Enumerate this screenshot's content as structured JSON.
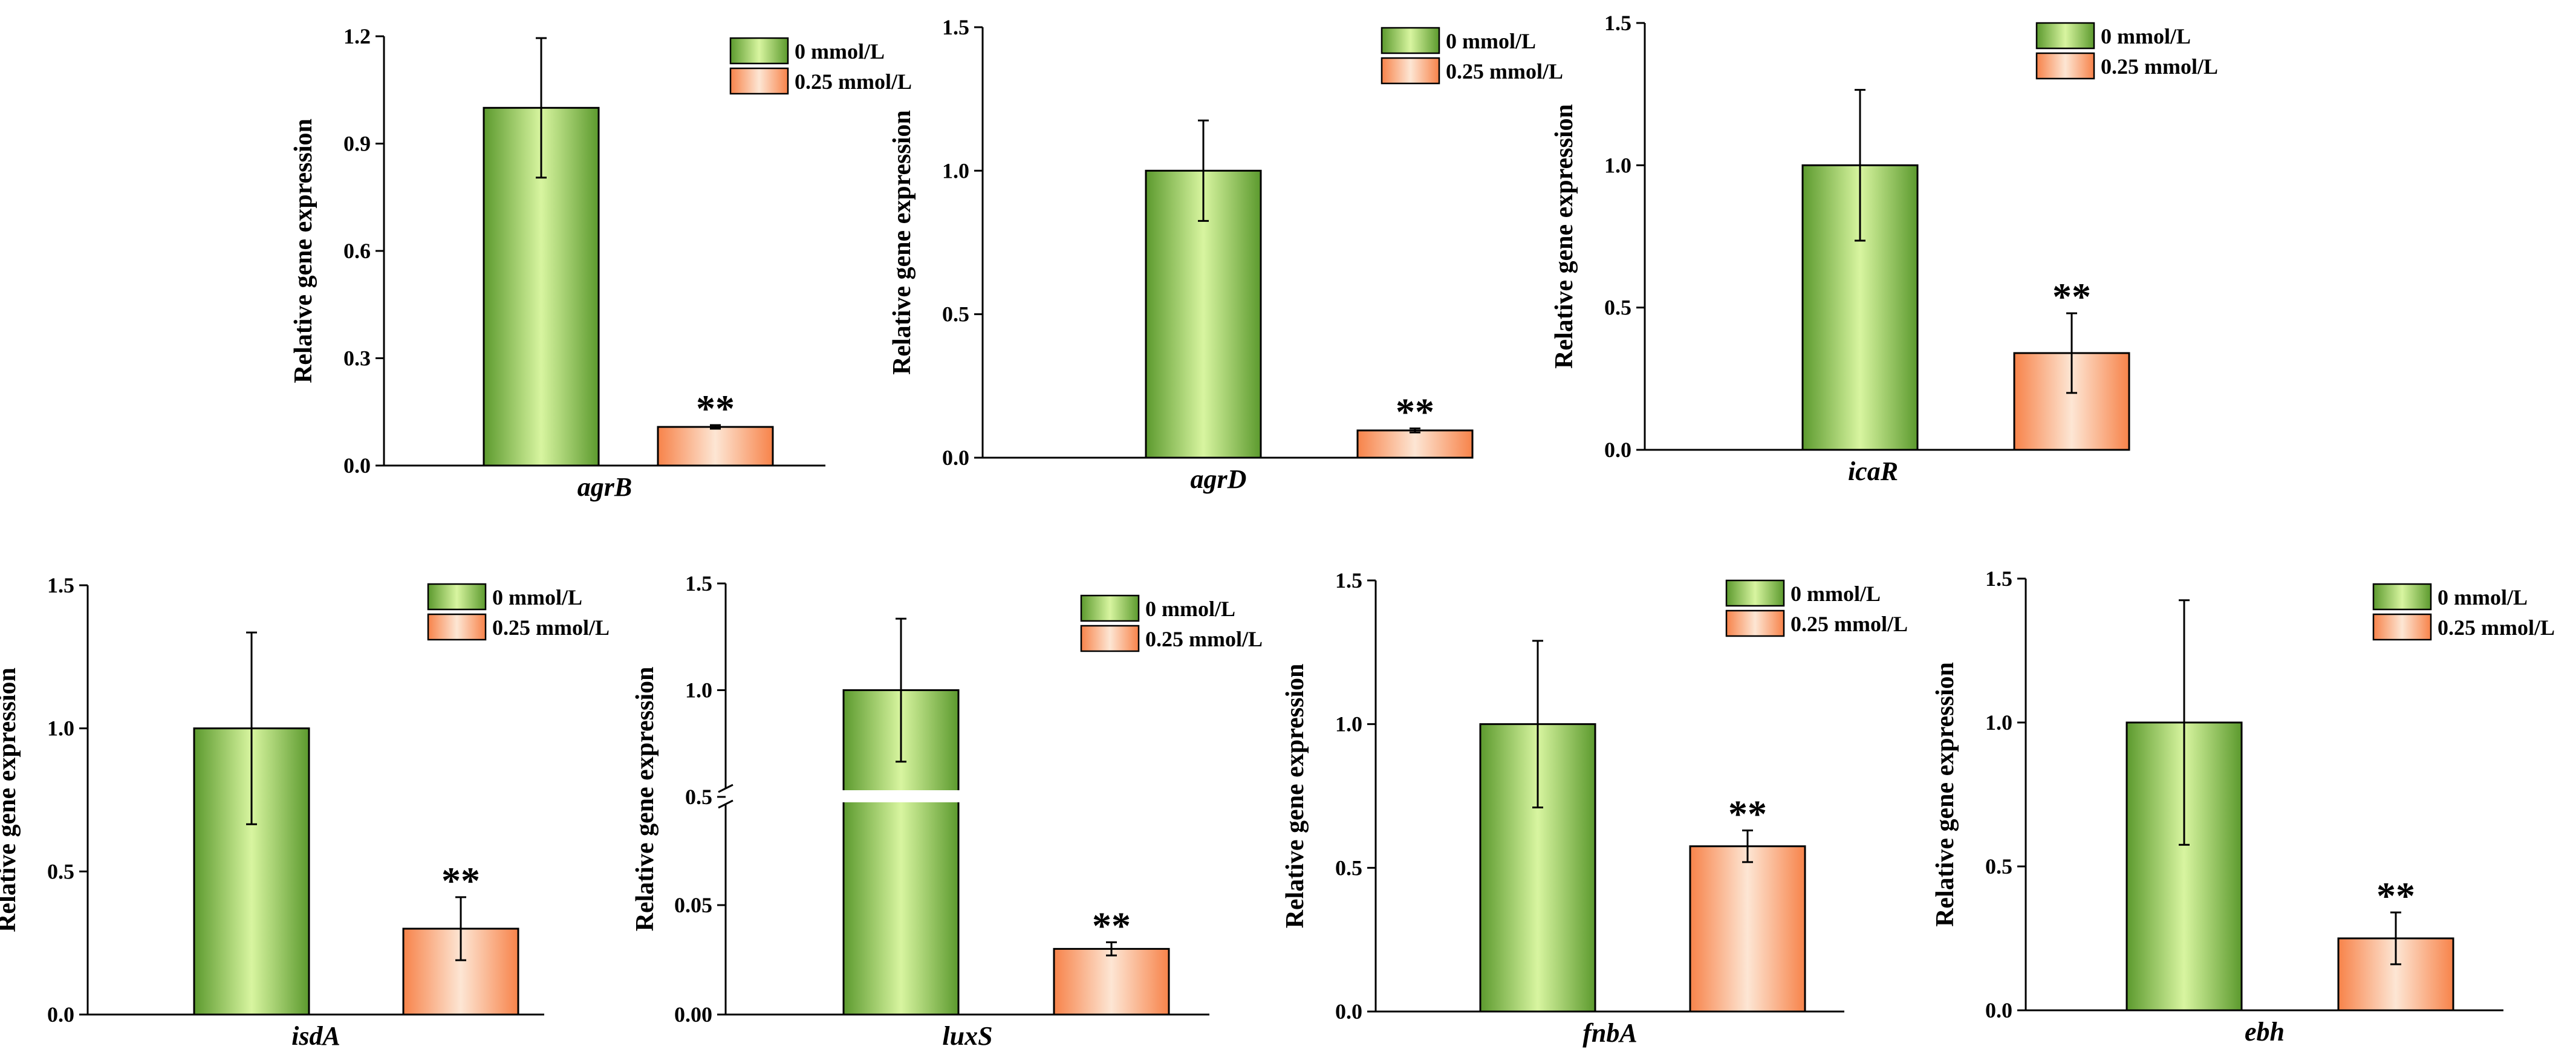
{
  "colors": {
    "control": "#8dc63f",
    "treated": "#f7834a",
    "axis": "#000000"
  },
  "chart_data": [
    {
      "type": "bar",
      "xlabel": "agrB",
      "ylabel": "Relative gene expression",
      "ylim": [
        0,
        1.2
      ],
      "yticks": [
        "0.0",
        "0.3",
        "0.6",
        "0.9",
        "1.2"
      ],
      "series": [
        {
          "name": "0 mmol/L",
          "value": 1.0,
          "error": 0.195
        },
        {
          "name": "0.25 mmol/L",
          "value": 0.108,
          "error": 0.005,
          "sig": "**"
        }
      ]
    },
    {
      "type": "bar",
      "xlabel": "agrD",
      "ylabel": "Relative gene expression",
      "ylim": [
        0,
        1.5
      ],
      "yticks": [
        "0.0",
        "0.5",
        "1.0",
        "1.5"
      ],
      "series": [
        {
          "name": "0 mmol/L",
          "value": 1.0,
          "error": 0.175
        },
        {
          "name": "0.25 mmol/L",
          "value": 0.095,
          "error": 0.007,
          "sig": "**"
        }
      ]
    },
    {
      "type": "bar",
      "xlabel": "icaR",
      "ylabel": "Relative gene expression",
      "ylim": [
        0,
        1.5
      ],
      "yticks": [
        "0.0",
        "0.5",
        "1.0",
        "1.5"
      ],
      "series": [
        {
          "name": "0 mmol/L",
          "value": 1.0,
          "error": 0.265
        },
        {
          "name": "0.25 mmol/L",
          "value": 0.34,
          "error": 0.14,
          "sig": "**"
        }
      ]
    },
    {
      "type": "bar",
      "xlabel": "isdA",
      "ylabel": "Relative gene expression",
      "ylim": [
        0,
        1.5
      ],
      "yticks": [
        "0.0",
        "0.5",
        "1.0",
        "1.5"
      ],
      "series": [
        {
          "name": "0 mmol/L",
          "value": 1.0,
          "error": 0.335
        },
        {
          "name": "0.25 mmol/L",
          "value": 0.3,
          "error": 0.11,
          "sig": "**"
        }
      ]
    },
    {
      "type": "bar",
      "xlabel": "luxS",
      "ylabel": "Relative gene expression",
      "axis_break": true,
      "ylim": [
        0,
        1.5
      ],
      "yticks": [
        "0.00",
        "0.05",
        "0.5",
        "1.0",
        "1.5"
      ],
      "series": [
        {
          "name": "0 mmol/L",
          "value": 1.0,
          "error": 0.335
        },
        {
          "name": "0.25 mmol/L",
          "value": 0.03,
          "error": 0.003,
          "sig": "**"
        }
      ]
    },
    {
      "type": "bar",
      "xlabel": "fnbA",
      "ylabel": "Relative gene expression",
      "ylim": [
        0,
        1.5
      ],
      "yticks": [
        "0.0",
        "0.5",
        "1.0",
        "1.5"
      ],
      "series": [
        {
          "name": "0 mmol/L",
          "value": 1.0,
          "error": 0.29
        },
        {
          "name": "0.25 mmol/L",
          "value": 0.575,
          "error": 0.055,
          "sig": "**"
        }
      ]
    },
    {
      "type": "bar",
      "xlabel": "ebh",
      "ylabel": "Relative gene expression",
      "ylim": [
        0,
        1.5
      ],
      "yticks": [
        "0.0",
        "0.5",
        "1.0",
        "1.5"
      ],
      "series": [
        {
          "name": "0 mmol/L",
          "value": 1.0,
          "error": 0.425
        },
        {
          "name": "0.25 mmol/L",
          "value": 0.25,
          "error": 0.09,
          "sig": "**"
        }
      ]
    }
  ]
}
